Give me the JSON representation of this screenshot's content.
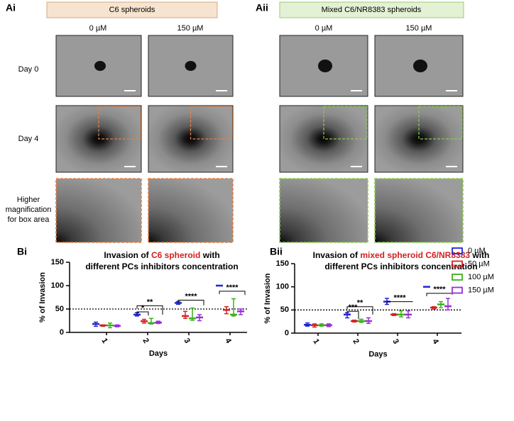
{
  "panel_a": {
    "left": {
      "label": "Ai",
      "header": "C6 spheroids",
      "columns": [
        "0 µM",
        "150 µM"
      ]
    },
    "right": {
      "label": "Aii",
      "header": "Mixed C6/NR8383 spheroids",
      "columns": [
        "0 µM",
        "150 µM"
      ]
    },
    "rows": [
      "Day 0",
      "Day 4",
      "Higher magnification for box area"
    ]
  },
  "chart_data": [
    {
      "type": "box",
      "panel_label": "Bi",
      "title_parts": [
        "Invasion of ",
        "C6 spheroid",
        " with"
      ],
      "subtitle": "different PCs inhibitors concentration",
      "ylabel": "% of Invasion",
      "xlabel": "Days",
      "categories": [
        "1",
        "2",
        "3",
        "4"
      ],
      "ylim": [
        0,
        150
      ],
      "yticks": [
        0,
        50,
        100,
        150
      ],
      "reference_line": 50,
      "series": [
        {
          "color": "#2424d4",
          "values": [
            18,
            38,
            63,
            100
          ],
          "min": [
            13,
            35,
            60,
            100
          ],
          "max": [
            22,
            42,
            66,
            100
          ]
        },
        {
          "color": "#d42424",
          "values": [
            15,
            24,
            35,
            48
          ],
          "min": [
            13,
            20,
            30,
            40
          ],
          "max": [
            16,
            28,
            45,
            55
          ]
        },
        {
          "color": "#3cb01c",
          "values": [
            15,
            20,
            30,
            38
          ],
          "min": [
            10,
            18,
            26,
            35
          ],
          "max": [
            20,
            30,
            52,
            72
          ]
        },
        {
          "color": "#9630d4",
          "values": [
            14,
            21,
            32,
            45
          ],
          "min": [
            12,
            19,
            25,
            38
          ],
          "max": [
            16,
            24,
            38,
            50
          ]
        }
      ],
      "annotations": [
        {
          "text": "*"
        },
        {
          "text": "**"
        },
        {
          "text": "****"
        },
        {
          "text": "****"
        }
      ]
    },
    {
      "type": "box",
      "panel_label": "Bii",
      "title_parts": [
        "Invasion of ",
        "mixed spheroid C6/NR8383",
        " with"
      ],
      "subtitle": "different PCs inhibitors concentration",
      "ylabel": "% of Invasion",
      "xlabel": "Days",
      "categories": [
        "1",
        "2",
        "3",
        "4"
      ],
      "ylim": [
        0,
        150
      ],
      "yticks": [
        0,
        50,
        100,
        150
      ],
      "reference_line": 50,
      "legend": "upper right",
      "series": [
        {
          "name": "0 µM",
          "color": "#2424d4",
          "values": [
            18,
            40,
            68,
            100
          ],
          "min": [
            15,
            33,
            62,
            100
          ],
          "max": [
            22,
            44,
            75,
            100
          ]
        },
        {
          "name": "50 µM",
          "color": "#d42424",
          "values": [
            17,
            26,
            40,
            55
          ],
          "min": [
            13,
            24,
            38,
            52
          ],
          "max": [
            20,
            28,
            42,
            57
          ]
        },
        {
          "name": "100 µM",
          "color": "#3cb01c",
          "values": [
            17,
            26,
            40,
            62
          ],
          "min": [
            15,
            23,
            35,
            55
          ],
          "max": [
            20,
            30,
            48,
            68
          ]
        },
        {
          "name": "150 µM",
          "color": "#9630d4",
          "values": [
            17,
            26,
            40,
            58
          ],
          "min": [
            14,
            21,
            33,
            50
          ],
          "max": [
            20,
            33,
            48,
            75
          ]
        }
      ],
      "annotations": [
        {
          "text": "***"
        },
        {
          "text": "**"
        },
        {
          "text": "****"
        },
        {
          "text": "****"
        }
      ]
    }
  ]
}
